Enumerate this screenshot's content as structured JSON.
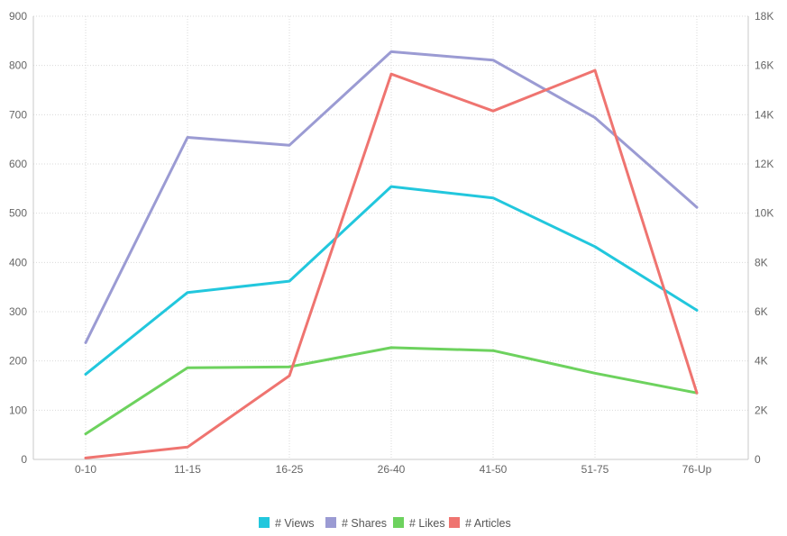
{
  "chart_data": {
    "type": "line",
    "categories": [
      "0-10",
      "11-15",
      "16-25",
      "26-40",
      "41-50",
      "51-75",
      "76-Up"
    ],
    "left_axis": {
      "ylim": [
        0,
        900
      ],
      "ticks": [
        "0",
        "100",
        "200",
        "300",
        "400",
        "500",
        "600",
        "700",
        "800",
        "900"
      ]
    },
    "right_axis": {
      "ylim": [
        0,
        18000
      ],
      "ticks": [
        "0",
        "2K",
        "4K",
        "6K",
        "8K",
        "10K",
        "12K",
        "14K",
        "16K",
        "18K"
      ]
    },
    "grid": true,
    "legend_position": "bottom-center",
    "series": [
      {
        "name": "# Views",
        "color": "#22c7dd",
        "axis": "left",
        "values": [
          173,
          339,
          362,
          554,
          531,
          432,
          303
        ]
      },
      {
        "name": "# Shares",
        "color": "#9b9bd3",
        "axis": "left",
        "values": [
          237,
          654,
          638,
          828,
          811,
          694,
          512
        ]
      },
      {
        "name": "# Likes",
        "color": "#6dd25e",
        "axis": "left",
        "values": [
          52,
          186,
          188,
          227,
          221,
          175,
          135
        ]
      },
      {
        "name": "# Articles",
        "color": "#ef7470",
        "axis": "right",
        "values": [
          60,
          500,
          3400,
          15650,
          14150,
          15800,
          2700
        ]
      }
    ]
  }
}
